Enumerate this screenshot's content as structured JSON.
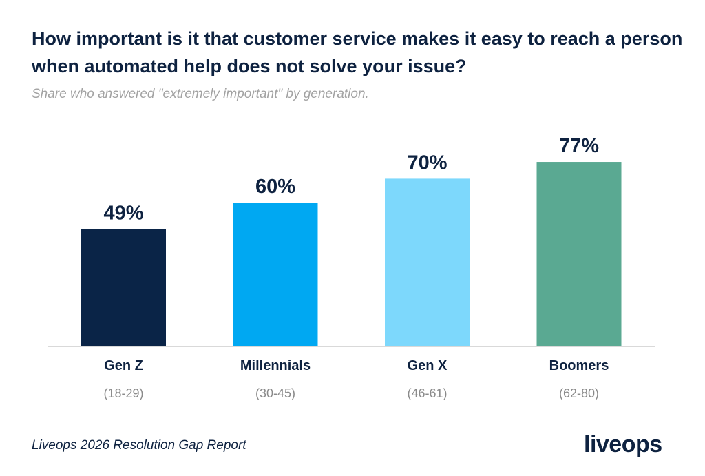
{
  "title": "How important is it that customer service makes it easy to reach a person when automated help does not solve your issue?",
  "subtitle": "Share who answered \"extremely important\" by generation.",
  "source": "Liveops 2026 Resolution Gap Report",
  "logo": "liveops",
  "colors": {
    "text": "#0e2240",
    "muted": "#8a8a8a",
    "baseline": "#d9d9d9"
  },
  "chart_data": {
    "type": "bar",
    "categories": [
      "Gen Z",
      "Millennials",
      "Gen X",
      "Boomers"
    ],
    "category_ranges": [
      "(18-29)",
      "(30-45)",
      "(46-61)",
      "(62-80)"
    ],
    "values": [
      49,
      60,
      70,
      77
    ],
    "value_labels": [
      "49%",
      "60%",
      "70%",
      "77%"
    ],
    "bar_colors": [
      "#0a2447",
      "#00a8f2",
      "#7dd8fc",
      "#5aa992"
    ],
    "ylim": [
      0,
      100
    ],
    "unit": "%",
    "grid": false,
    "legend": "none"
  }
}
